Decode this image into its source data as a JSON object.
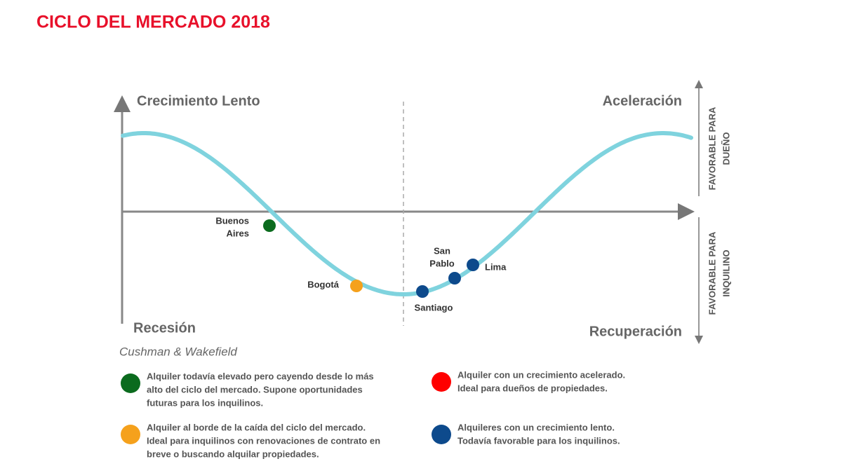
{
  "title": "CICLO DEL MERCADO 2018",
  "quadrants": {
    "top_left": "Crecimiento Lento",
    "top_right": "Aceleración",
    "bottom_left": "Recesión",
    "bottom_right": "Recuperación"
  },
  "side_labels": {
    "owner": [
      "FAVORABLE PARA",
      "DUEÑO"
    ],
    "tenant": [
      "FAVORABLE PARA",
      "INQUILINO"
    ]
  },
  "source": "Cushman & Wakefield",
  "cities": [
    {
      "label": [
        "Buenos",
        "Aires"
      ],
      "color": "#0b6b1e"
    },
    {
      "label": [
        "Bogotá"
      ],
      "color": "#f5a11c"
    },
    {
      "label": [
        "Santiago"
      ],
      "color": "#0d4a8c"
    },
    {
      "label": [
        "San",
        "Pablo"
      ],
      "color": "#0d4a8c"
    },
    {
      "label": [
        "Lima"
      ],
      "color": "#0d4a8c"
    }
  ],
  "legend": [
    {
      "color": "#0b6b1e",
      "lines": [
        "Alquiler todavía elevado pero cayendo desde lo más",
        "alto del ciclo del mercado. Supone oportunidades",
        "futuras para los inquilinos."
      ]
    },
    {
      "color": "#ff0000",
      "lines": [
        "Alquiler con un crecimiento acelerado.",
        "Ideal para dueños de propiedades."
      ]
    },
    {
      "color": "#f5a11c",
      "lines": [
        "Alquiler al borde de la caída del ciclo del mercado.",
        "Ideal para inquilinos con renovaciones de contrato en",
        "breve o buscando alquilar propiedades."
      ]
    },
    {
      "color": "#0d4a8c",
      "lines": [
        "Alquileres con un crecimiento lento.",
        "Todavía favorable para los inquilinos."
      ]
    }
  ]
}
